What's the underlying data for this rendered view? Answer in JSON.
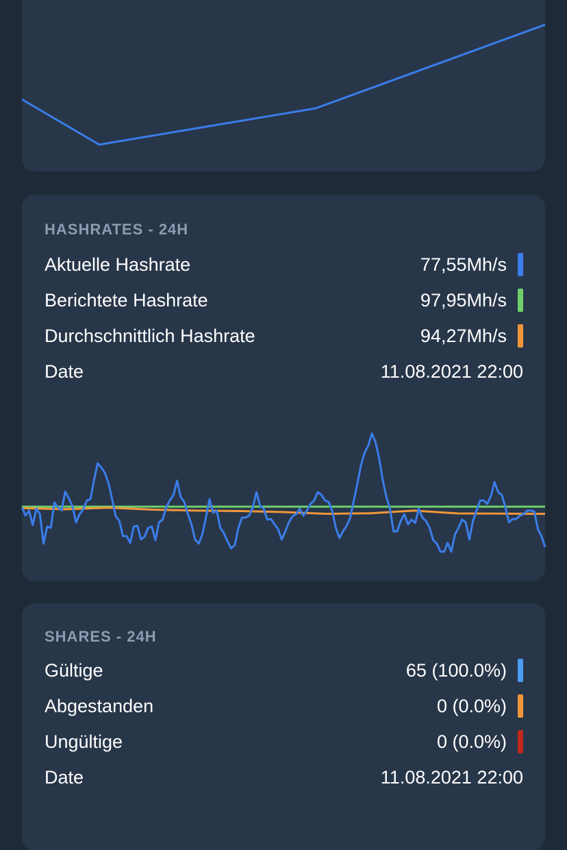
{
  "top_chart": {
    "type": "line",
    "color": "#3b7de9",
    "x": [
      0,
      3,
      11.4,
      20.3
    ],
    "values": [
      42,
      15.6,
      36.8,
      85.6
    ],
    "xlim": [
      0,
      20.3
    ],
    "ylim": [
      0,
      100
    ]
  },
  "hashrates": {
    "title": "HASHRATES - 24H",
    "rows": [
      {
        "label": "Aktuelle Hashrate",
        "value": "77,55Mh/s",
        "color": "#3b7de9"
      },
      {
        "label": "Berichtete Hashrate",
        "value": "97,95Mh/s",
        "color": "#6fd06b"
      },
      {
        "label": "Durchschnittlich Hashrate",
        "value": "94,27Mh/s",
        "color": "#f0963a"
      }
    ],
    "date_label": "Date",
    "date": "11.08.2021 22:00",
    "chart": {
      "type": "line",
      "ylim": [
        70,
        139
      ],
      "series": [
        {
          "name": "Berichtete Hashrate",
          "color": "#6fd06b",
          "values": [
            97.9,
            97.9,
            97.9,
            97.9,
            97.9,
            97.9,
            97.9,
            97.9,
            97.9,
            97.9,
            97.9,
            97.9,
            97.9
          ]
        },
        {
          "name": "Durchschnittlich Hashrate",
          "color": "#f0963a",
          "values": [
            97.2,
            96.6,
            97.4,
            96.4,
            95.9,
            95.7,
            95.2,
            94.3,
            94.6,
            95.9,
            94.5,
            94.4,
            94.3
          ]
        },
        {
          "name": "Aktuelle Hashrate",
          "color": "#3b7de9",
          "values": [
            97.6,
            93.4,
            95.9,
            88.6,
            96.9,
            94.1,
            79.3,
            87.9,
            87.2,
            100,
            97.6,
            95.9,
            105.5,
            102.1,
            98.3,
            90,
            94.1,
            96.6,
            101,
            101.7,
            111.4,
            119.7,
            117.6,
            114.8,
            109.7,
            101.7,
            93.1,
            90.7,
            83.1,
            83.1,
            79.7,
            87.9,
            88.3,
            81.4,
            82.8,
            87.2,
            87.9,
            81,
            90,
            91.4,
            97.6,
            101,
            103.8,
            111,
            102.8,
            100.3,
            94.1,
            89,
            81.4,
            79.3,
            83.8,
            92.4,
            101.7,
            94.8,
            95.9,
            87.2,
            84.5,
            80.3,
            76.9,
            78.6,
            87.2,
            92.4,
            92.4,
            93.4,
            97.6,
            105.2,
            98.3,
            96.9,
            91.4,
            91.7,
            89,
            86.6,
            81.4,
            85.5,
            90,
            93.1,
            94.1,
            96.9,
            93.4,
            95.9,
            99.3,
            101,
            105.2,
            103.8,
            101,
            100.3,
            95.9,
            87.2,
            82.1,
            85.5,
            88.3,
            92.4,
            101,
            109.7,
            119,
            125.2,
            128.6,
            134.8,
            130.3,
            122.4,
            111.4,
            102.8,
            96.9,
            85.5,
            85.5,
            90.7,
            94.1,
            89,
            91.4,
            89.7,
            96.9,
            92.4,
            90.7,
            87.2,
            81,
            79.3,
            75.2,
            75.2,
            79.7,
            75.2,
            83.8,
            87.2,
            91.4,
            90,
            81.4,
            90.7,
            95.9,
            101,
            101,
            99.3,
            103.4,
            110.3,
            105.2,
            103.8,
            97.6,
            90,
            91.7,
            91.7,
            93.4,
            94.1,
            95.9,
            95.9,
            95.5,
            86.6,
            83.1,
            77.6
          ]
        }
      ]
    }
  },
  "shares": {
    "title": "SHARES - 24H",
    "rows": [
      {
        "label": "Gültige",
        "value": "65 (100.0%)",
        "color": "#4d9cf5"
      },
      {
        "label": "Abgestanden",
        "value": "0 (0.0%)",
        "color": "#f0963a"
      },
      {
        "label": "Ungültige",
        "value": "0 (0.0%)",
        "color": "#c0281c"
      }
    ],
    "date_label": "Date",
    "date": "11.08.2021 22:00"
  }
}
